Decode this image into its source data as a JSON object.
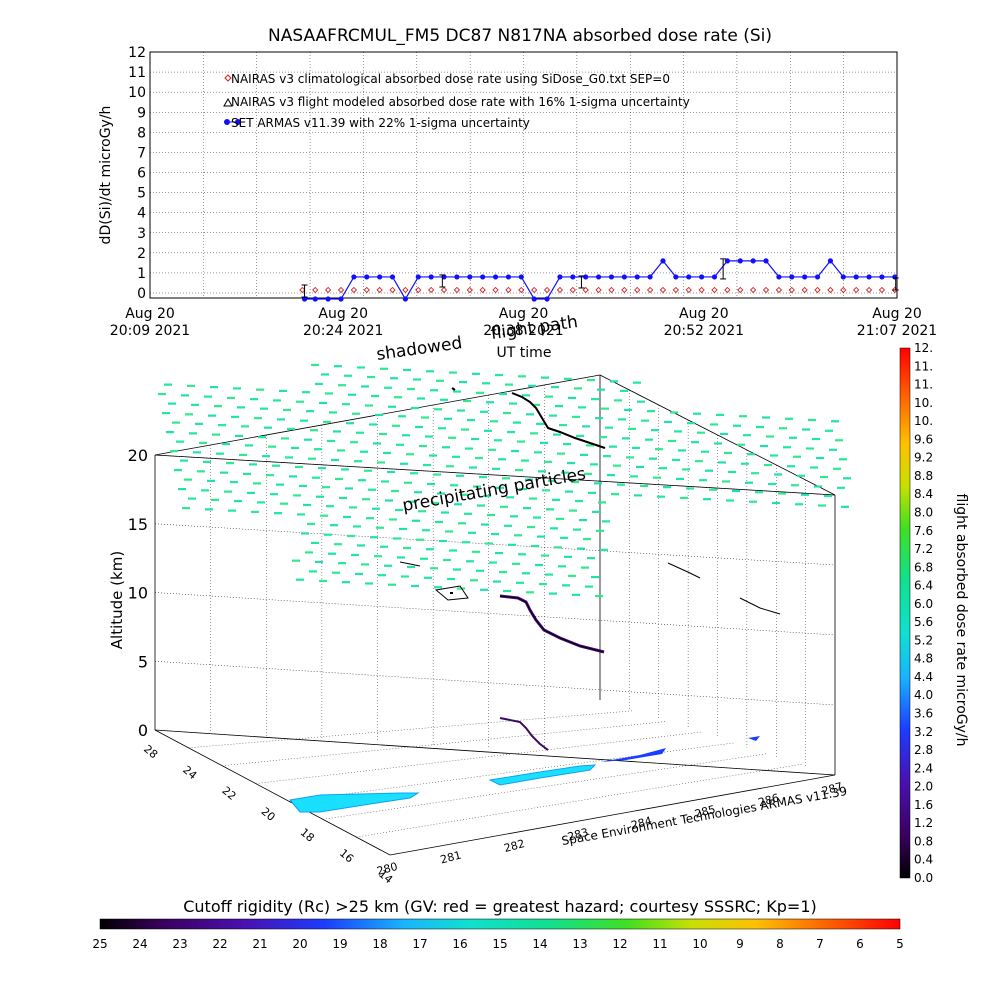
{
  "chart_data": [
    {
      "type": "line",
      "title": "NASAAFRCMUL_FM5 DC87 N817NA absorbed dose rate (Si)",
      "ylabel": "dD(Si)/dt microGy/h",
      "xlabel": "UT time",
      "ylim": [
        0,
        12
      ],
      "yticks": [
        "0",
        "1",
        "2",
        "3",
        "4",
        "5",
        "6",
        "7",
        "8",
        "9",
        "10",
        "11",
        "12"
      ],
      "xticks": [
        {
          "date": "Aug 20",
          "time": "20:09 2021"
        },
        {
          "date": "Aug 20",
          "time": "20:24 2021"
        },
        {
          "date": "Aug 20",
          "time": "20:38 2021"
        },
        {
          "date": "Aug 20",
          "time": "20:52 2021"
        },
        {
          "date": "Aug 20",
          "time": "21:07 2021"
        }
      ],
      "legend_position": "top-left",
      "series": [
        {
          "name": "NAIRAS v3 climatological absorbed dose rate using SiDose_G0.txt SEP=0",
          "color": "#d62020",
          "marker": "diamond",
          "x": [
            20.83,
            21.83,
            22.83,
            23.83,
            24.83,
            25.83,
            26.83,
            27.83,
            28.83,
            29.83,
            30.83,
            31.83,
            32.83,
            33.83,
            34.83,
            35.83,
            36.83,
            37.83,
            38.83,
            39.83,
            40.83,
            41.83,
            42.83,
            43.83,
            44.83,
            45.83,
            46.83,
            47.83,
            48.83,
            49.83,
            50.83,
            51.83,
            52.83,
            53.83,
            54.83,
            55.83,
            56.83,
            57.83,
            58.83,
            59.83,
            60.83,
            61.83,
            62.83,
            63.83,
            64.83,
            65.83,
            66.83
          ],
          "values": [
            0.15,
            0.15,
            0.15,
            0.15,
            0.15,
            0.15,
            0.15,
            0.15,
            0.15,
            0.15,
            0.15,
            0.15,
            0.15,
            0.15,
            0.15,
            0.15,
            0.15,
            0.15,
            0.15,
            0.15,
            0.15,
            0.15,
            0.15,
            0.15,
            0.15,
            0.15,
            0.15,
            0.15,
            0.15,
            0.15,
            0.15,
            0.15,
            0.15,
            0.15,
            0.15,
            0.15,
            0.15,
            0.15,
            0.15,
            0.15,
            0.15,
            0.15,
            0.15,
            0.15,
            0.15,
            0.15,
            0.15
          ]
        },
        {
          "name": "NAIRAS v3 flight modeled absorbed dose rate with 16% 1-sigma uncertainty",
          "color": "#000000",
          "marker": "triangle",
          "x": [
            21.0,
            31.7,
            42.5,
            53.5,
            66.9
          ],
          "values": [
            0.1,
            0.6,
            0.55,
            1.2,
            0.45
          ],
          "err": [
            0.3,
            0.3,
            0.3,
            0.5,
            0.3
          ]
        },
        {
          "name": "SET ARMAS v11.39 with 22% 1-sigma uncertainty",
          "color": "#1010ff",
          "marker": "circle",
          "x": [
            21.0,
            21.83,
            22.83,
            23.83,
            24.83,
            25.83,
            26.83,
            27.83,
            28.83,
            29.83,
            30.83,
            31.83,
            32.83,
            33.83,
            34.83,
            35.83,
            36.83,
            37.83,
            38.83,
            39.83,
            40.83,
            41.83,
            42.83,
            43.83,
            44.83,
            45.83,
            46.83,
            47.83,
            48.83,
            49.83,
            50.83,
            51.83,
            52.83,
            53.83,
            54.83,
            55.83,
            56.83,
            57.83,
            58.83,
            59.83,
            60.83,
            61.83,
            62.83,
            63.83,
            64.83,
            65.83,
            66.83
          ],
          "values": [
            -0.3,
            -0.3,
            -0.3,
            -0.3,
            0.8,
            0.8,
            0.8,
            0.8,
            -0.3,
            0.8,
            0.8,
            0.8,
            0.8,
            0.8,
            0.8,
            0.8,
            0.8,
            0.8,
            -0.3,
            -0.3,
            0.8,
            0.8,
            0.8,
            0.8,
            0.8,
            0.8,
            0.8,
            0.8,
            1.6,
            0.8,
            0.8,
            0.8,
            0.8,
            1.6,
            1.6,
            1.6,
            1.6,
            0.8,
            0.8,
            0.8,
            0.8,
            1.6,
            0.8,
            0.8,
            0.8,
            0.8,
            0.8
          ]
        }
      ]
    },
    {
      "type": "scatter3d",
      "zlabel": "Altitude (km)",
      "zticks": [
        "0",
        "5",
        "10",
        "15",
        "20"
      ],
      "latitude_ticks": [
        "28",
        "24",
        "22",
        "20",
        "18",
        "16",
        "14"
      ],
      "longitude_ticks": [
        "280",
        "281",
        "282",
        "283",
        "284",
        "285",
        "286",
        "287"
      ],
      "annotations": [
        "shadowed",
        "flight path",
        "precipitating particles"
      ],
      "credit": "Space Environment Technologies ARMAS v11.39"
    },
    {
      "type": "colorbar",
      "label": "flight absorbed dose rate microGy/h",
      "ticks": [
        "0.0",
        "0.4",
        "0.8",
        "1.2",
        "1.6",
        "2.0",
        "2.4",
        "2.8",
        "3.2",
        "3.6",
        "4.0",
        "4.4",
        "4.8",
        "5.2",
        "5.6",
        "6.0",
        "6.4",
        "6.8",
        "7.2",
        "7.6",
        "8.0",
        "8.4",
        "8.8",
        "9.2",
        "9.6",
        "10.",
        "10.",
        "11.",
        "11.",
        "12."
      ]
    },
    {
      "type": "colorbar",
      "label": "Cutoff rigidity (Rc) >25 km (GV: red = greatest hazard; courtesy SSSRC; Kp=1)",
      "ticks": [
        "25",
        "24",
        "23",
        "22",
        "21",
        "20",
        "19",
        "18",
        "17",
        "16",
        "15",
        "14",
        "13",
        "12",
        "11",
        "10",
        "9",
        "8",
        "7",
        "6",
        "5"
      ]
    }
  ]
}
